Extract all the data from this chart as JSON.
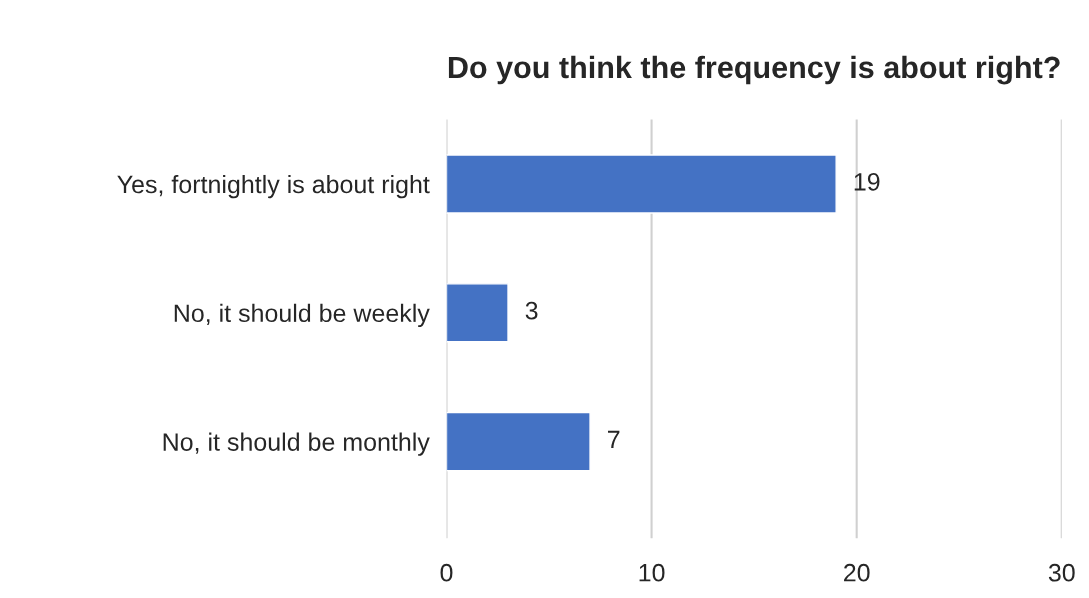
{
  "chart_data": {
    "type": "bar",
    "orientation": "horizontal",
    "title": "Do you think the frequency is about right?",
    "categories": [
      "Yes, fortnightly is about right",
      "No, it should be weekly",
      "No, it should be monthly"
    ],
    "values": [
      19,
      3,
      7
    ],
    "color": "#4472c4",
    "xlim": [
      0,
      30
    ],
    "xticks": [
      0,
      10,
      20,
      30
    ],
    "grid": "x",
    "data_labels": true
  }
}
